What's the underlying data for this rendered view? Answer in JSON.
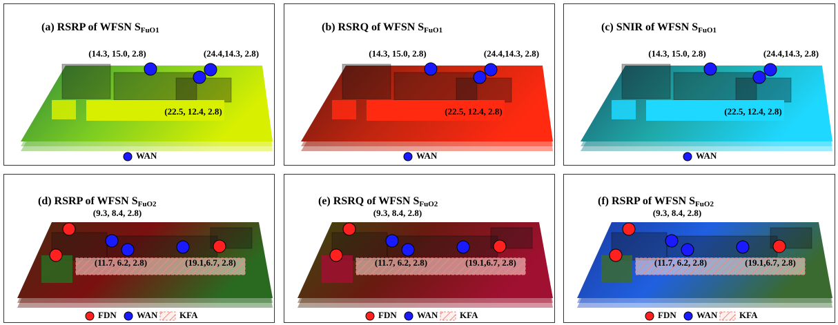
{
  "panels": [
    {
      "title": "(a) RSRP of WFSN S",
      "subscript": "FuO1",
      "labels": [
        "(14.3, 15.0, 2.8)",
        "(24.4,14.3, 2.8)",
        "(22.5, 12.4, 2.8)"
      ],
      "legend": [
        "WAN"
      ]
    },
    {
      "title": "(b) RSRQ of WFSN S",
      "subscript": "FuO1",
      "labels": [
        "(14.3, 15.0, 2.8)",
        "(24.4,14.3, 2.8)",
        "(22.5, 12.4, 2.8)"
      ],
      "legend": [
        "WAN"
      ]
    },
    {
      "title": "(c) SNIR of WFSN S",
      "subscript": "FuO1",
      "labels": [
        "(14.3, 15.0, 2.8)",
        "(24.4,14.3, 2.8)",
        "(22.5, 12.4, 2.8)"
      ],
      "legend": [
        "WAN"
      ]
    },
    {
      "title": "(d) RSRP of WFSN S",
      "subscript": "FuO2",
      "labels": [
        "(9.3, 8.4, 2.8)",
        "(11.7, 6.2, 2.8)",
        "(19.1,6.7, 2.8)"
      ],
      "legend": [
        "FDN",
        "WAN",
        "KFA"
      ]
    },
    {
      "title": "(e) RSRQ of WFSN S",
      "subscript": "FuO2",
      "labels": [
        "(9.3, 8.4, 2.8)",
        "(11.7, 6.2, 2.8)",
        "(19.1,6.7, 2.8)"
      ],
      "legend": [
        "FDN",
        "WAN",
        "KFA"
      ]
    },
    {
      "title": "(f) RSRP of WFSN S",
      "subscript": "FuO2",
      "labels": [
        "(9.3, 8.4, 2.8)",
        "(11.7, 6.2, 2.8)",
        "(19.1,6.7, 2.8)"
      ],
      "legend": [
        "FDN",
        "WAN",
        "KFA"
      ]
    }
  ]
}
